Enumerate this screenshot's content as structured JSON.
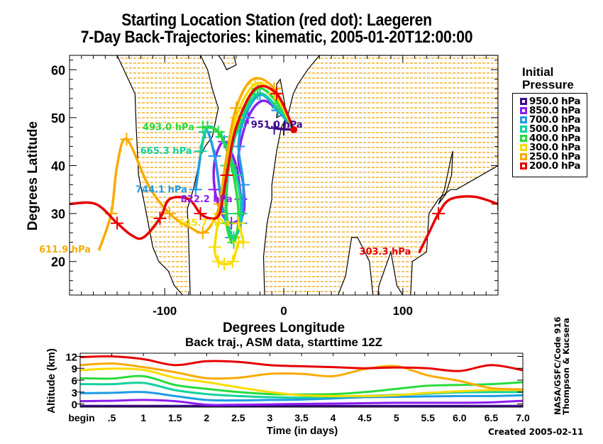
{
  "titles": {
    "line1": "Starting Location Station (red dot):  Laegeren",
    "line2": "7-Day Back-Trajectories: kinematic, 2005-01-20T12:00:00"
  },
  "legend": {
    "title_line1": "Initial",
    "title_line2": "Pressure",
    "items": [
      {
        "label": "950.0 hPa",
        "color": "#3c0a8c"
      },
      {
        "label": "850.0 hPa",
        "color": "#8c1ef0"
      },
      {
        "label": "700.0 hPa",
        "color": "#1e9be6"
      },
      {
        "label": "500.0 hPa",
        "color": "#14d29b"
      },
      {
        "label": "400.0 hPa",
        "color": "#28dc3c"
      },
      {
        "label": "300.0 hPa",
        "color": "#fadc00"
      },
      {
        "label": "250.0 hPa",
        "color": "#faaa00"
      },
      {
        "label": "200.0 hPa",
        "color": "#e60000"
      }
    ]
  },
  "credits": {
    "vertical_line1": "NASA/GSFC/Code 916",
    "vertical_line2": "Thompson & Kucsera",
    "created": "Created 2005-02-11"
  },
  "chart_data": [
    {
      "type": "line",
      "title": "7-Day Back-Trajectories map",
      "xlabel": "Degrees Longitude",
      "ylabel": "Degrees Latitude",
      "xlim": [
        -180,
        180
      ],
      "ylim": [
        13,
        63
      ],
      "xticks": [
        -100,
        0,
        100
      ],
      "xtick_labels": [
        "-100",
        "0",
        "100"
      ],
      "yticks": [
        20,
        30,
        40,
        50,
        60
      ],
      "ytick_labels": [
        "20",
        "30",
        "40",
        "50",
        "60"
      ],
      "start_point": {
        "lon": 8.4,
        "lat": 47.5,
        "label": "Laegeren",
        "color": "#e60000"
      },
      "series": [
        {
          "name": "950.0 hPa",
          "color": "#3c0a8c",
          "end_label": "951.0 hPa",
          "lon": [
            8.4,
            0,
            -8
          ],
          "lat": [
            47.5,
            47.6,
            47.8
          ]
        },
        {
          "name": "850.0 hPa",
          "color": "#8c1ef0",
          "end_label": "822.2 hPa",
          "lon": [
            8.4,
            -5,
            -18,
            -30,
            -38,
            -34,
            -34,
            -44,
            -52,
            -58,
            -58,
            -50,
            -40,
            -36
          ],
          "lat": [
            47.5,
            51.5,
            53.5,
            50,
            42,
            36,
            30,
            28,
            30,
            35,
            41,
            45,
            40,
            33
          ]
        },
        {
          "name": "700.0 hPa",
          "color": "#1e9be6",
          "end_label": "744.1 hPa",
          "lon": [
            8.4,
            -5,
            -20,
            -33,
            -38,
            -34,
            -36,
            -44,
            -52,
            -58,
            -66,
            -74
          ],
          "lat": [
            47.5,
            51.5,
            54.8,
            50,
            44,
            36,
            28,
            25,
            32,
            42,
            47,
            35
          ]
        },
        {
          "name": "500.0 hPa",
          "color": "#14d29b",
          "end_label": "665.3 hPa",
          "lon": [
            8.4,
            -5,
            -22,
            -38,
            -46,
            -48,
            -42,
            -36,
            -40,
            -52,
            -64,
            -70
          ],
          "lat": [
            47.5,
            52,
            55,
            48,
            40,
            30,
            25,
            30,
            38,
            46,
            48,
            43
          ]
        },
        {
          "name": "400.0 hPa",
          "color": "#28dc3c",
          "end_label": "493.0 hPa",
          "lon": [
            8.4,
            -5,
            -22,
            -38,
            -48,
            -48,
            -42,
            -38,
            -44,
            -55,
            -68
          ],
          "lat": [
            47.5,
            53,
            56,
            49,
            40,
            28,
            24,
            30,
            40,
            47,
            48
          ]
        },
        {
          "name": "300.0 hPa",
          "color": "#fadc00",
          "end_label": "645.7 hPa",
          "lon": [
            8.4,
            -8,
            -24,
            -40,
            -48,
            -54,
            -58,
            -55,
            -50,
            -43,
            -38,
            -34,
            -38
          ],
          "lat": [
            47.5,
            55,
            57,
            50,
            38,
            30,
            23,
            20,
            19.5,
            20,
            24,
            24,
            28
          ]
        },
        {
          "name": "250.0 hPa",
          "color": "#faaa00",
          "end_label": "611.9 hPa",
          "lon": [
            8.4,
            -8,
            -26,
            -40,
            -48,
            -54,
            -60,
            -68,
            -78,
            -96,
            -114,
            -132,
            -140,
            -145,
            -155
          ],
          "lat": [
            47.5,
            56,
            58,
            52,
            42,
            32,
            28,
            26,
            27,
            30,
            36,
            45.5,
            40,
            30,
            22.5
          ]
        },
        {
          "name": "200.0 hPa",
          "color": "#e60000",
          "end_label": "303.3 hPa",
          "lon": [
            8.4,
            -6,
            -24,
            -40,
            -48,
            -54,
            -62,
            -70,
            -80,
            -96,
            -104,
            -118,
            -128,
            -140,
            -158,
            -180,
            180,
            160,
            140,
            130,
            122,
            114
          ],
          "lat": [
            47.5,
            55,
            56,
            48,
            38,
            30,
            29,
            30,
            33,
            33,
            29,
            25,
            25.5,
            28,
            32,
            32,
            32,
            33.5,
            33,
            30,
            26,
            22
          ]
        }
      ]
    },
    {
      "type": "line",
      "title": "Back traj., ASM data, starttime 12Z",
      "xlabel": "Time (in days)",
      "ylabel": "Altitude (km)",
      "xlim": [
        0,
        7
      ],
      "ylim": [
        -0.8,
        12.8
      ],
      "xticks": [
        0,
        0.5,
        1,
        1.5,
        2,
        2.5,
        3,
        3.5,
        4,
        4.5,
        5,
        5.5,
        6,
        6.5,
        7
      ],
      "xtick_labels": [
        "begin",
        ".5",
        "1",
        "1.5",
        "2",
        "2.5",
        "3",
        "3.5",
        "4",
        "4.5",
        "5",
        "5.5",
        "6.0",
        "6.5",
        "7.0"
      ],
      "yticks": [
        0,
        3,
        6,
        9,
        12
      ],
      "ytick_labels": [
        "0",
        "3",
        "6",
        "9",
        "12"
      ],
      "x": [
        0,
        0.5,
        1,
        1.5,
        2,
        2.5,
        3,
        3.5,
        4,
        4.5,
        5,
        5.5,
        6,
        6.5,
        7
      ],
      "series": [
        {
          "name": "950.0 hPa",
          "color": "#3c0a8c",
          "values": [
            -0.5,
            -0.5,
            -0.5,
            -0.5,
            -0.5,
            -0.5,
            -0.5,
            -0.5,
            -0.5,
            -0.5,
            -0.5,
            -0.5,
            -0.5,
            -0.5,
            -0.5
          ]
        },
        {
          "name": "850.0 hPa",
          "color": "#8c1ef0",
          "values": [
            0.7,
            0.8,
            1.0,
            0.7,
            -0.2,
            -0.2,
            -0.1,
            0.0,
            0.1,
            0.2,
            0.3,
            0.3,
            0.3,
            0.4,
            0.8
          ]
        },
        {
          "name": "700.0 hPa",
          "color": "#1e9be6",
          "values": [
            2.7,
            2.8,
            3.0,
            2.0,
            1.0,
            0.9,
            1.0,
            1.1,
            1.4,
            1.7,
            1.8,
            1.9,
            2.0,
            2.0,
            2.2
          ]
        },
        {
          "name": "500.0 hPa",
          "color": "#14d29b",
          "values": [
            5.0,
            5.0,
            5.3,
            3.5,
            2.5,
            2.0,
            1.7,
            1.6,
            1.8,
            2.0,
            2.3,
            2.6,
            2.9,
            3.0,
            3.0
          ]
        },
        {
          "name": "400.0 hPa",
          "color": "#28dc3c",
          "values": [
            6.5,
            6.4,
            7.0,
            4.8,
            3.8,
            3.0,
            2.5,
            2.4,
            2.5,
            3.0,
            3.8,
            4.6,
            4.8,
            5.0,
            5.5
          ]
        },
        {
          "name": "300.0 hPa",
          "color": "#fadc00",
          "values": [
            8.5,
            8.9,
            8.6,
            6.6,
            5.5,
            4.2,
            3.0,
            2.2,
            2.0,
            2.0,
            2.2,
            2.8,
            3.2,
            3.5,
            3.5
          ]
        },
        {
          "name": "250.0 hPa",
          "color": "#faaa00",
          "values": [
            9.8,
            10.2,
            9.3,
            8.0,
            6.5,
            6.6,
            7.6,
            7.6,
            7.0,
            8.8,
            9.5,
            7.2,
            5.8,
            4.0,
            3.7
          ]
        },
        {
          "name": "200.0 hPa",
          "color": "#e60000",
          "values": [
            11.8,
            12.0,
            11.3,
            9.8,
            10.8,
            10.6,
            9.8,
            9.5,
            9.3,
            9.0,
            9.2,
            9.0,
            8.3,
            9.8,
            8.5
          ]
        }
      ]
    }
  ]
}
